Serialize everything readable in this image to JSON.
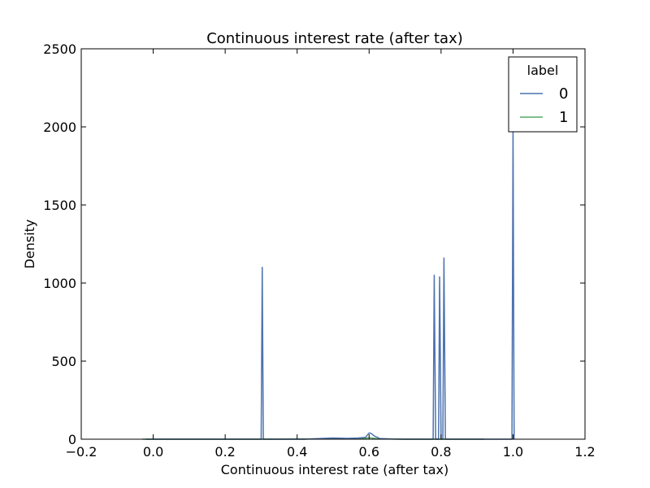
{
  "chart_data": {
    "type": "line",
    "title": "Continuous interest rate (after tax)",
    "xlabel": "Continuous interest rate (after tax)",
    "ylabel": "Density",
    "xlim": [
      -0.2,
      1.2
    ],
    "ylim": [
      0,
      2500
    ],
    "x_ticks": [
      -0.2,
      0.0,
      0.2,
      0.4,
      0.6,
      0.8,
      1.0,
      1.2
    ],
    "x_tick_labels": [
      "−0.2",
      "0.0",
      "0.2",
      "0.4",
      "0.6",
      "0.8",
      "1.0",
      "1.2"
    ],
    "y_ticks": [
      0,
      500,
      1000,
      1500,
      2000,
      2500
    ],
    "y_tick_labels": [
      "0",
      "500",
      "1000",
      "1500",
      "2000",
      "2500"
    ],
    "grid": false,
    "legend": {
      "title": "label",
      "position": "top-right"
    },
    "series": [
      {
        "name": "0",
        "color": "#4c72b0",
        "points": [
          [
            -0.02,
            0
          ],
          [
            0.3,
            0
          ],
          [
            0.303,
            1100
          ],
          [
            0.306,
            0
          ],
          [
            0.42,
            0
          ],
          [
            0.46,
            4
          ],
          [
            0.5,
            8
          ],
          [
            0.54,
            5
          ],
          [
            0.57,
            8
          ],
          [
            0.59,
            12
          ],
          [
            0.6,
            40
          ],
          [
            0.605,
            38
          ],
          [
            0.615,
            20
          ],
          [
            0.63,
            4
          ],
          [
            0.66,
            1
          ],
          [
            0.7,
            0
          ],
          [
            0.778,
            0
          ],
          [
            0.781,
            1050
          ],
          [
            0.785,
            0
          ],
          [
            0.793,
            0
          ],
          [
            0.796,
            1040
          ],
          [
            0.8,
            0
          ],
          [
            0.805,
            0
          ],
          [
            0.808,
            1160
          ],
          [
            0.812,
            0
          ],
          [
            0.92,
            0
          ],
          [
            0.997,
            0
          ],
          [
            1.0,
            2000
          ],
          [
            1.003,
            0
          ]
        ]
      },
      {
        "name": "1",
        "color": "#55a868",
        "points": [
          [
            -0.03,
            0
          ],
          [
            0.3,
            0
          ],
          [
            0.42,
            1
          ],
          [
            0.5,
            3
          ],
          [
            0.56,
            4
          ],
          [
            0.59,
            6
          ],
          [
            0.6,
            10
          ],
          [
            0.62,
            4
          ],
          [
            0.66,
            1
          ],
          [
            0.7,
            0
          ],
          [
            0.8,
            0
          ],
          [
            0.92,
            0
          ]
        ]
      }
    ]
  }
}
